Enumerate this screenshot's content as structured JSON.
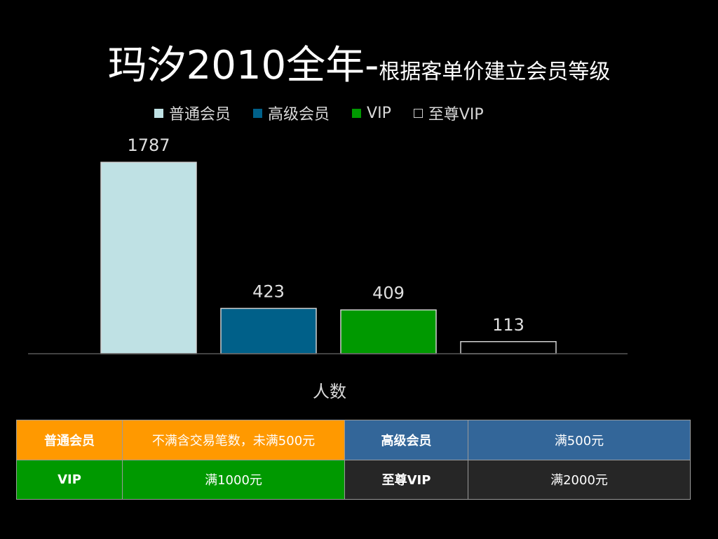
{
  "title": {
    "main": "玛汐2010全年-",
    "sub": "根据客单价建立会员等级"
  },
  "chart_data": {
    "type": "bar",
    "categories": [
      "人数"
    ],
    "series": [
      {
        "name": "普通会员",
        "values": [
          1787
        ],
        "color": "#bfe1e4"
      },
      {
        "name": "高级会员",
        "values": [
          423
        ],
        "color": "#006089"
      },
      {
        "name": "VIP",
        "values": [
          409
        ],
        "color": "#009900"
      },
      {
        "name": "至尊VIP",
        "values": [
          113
        ],
        "color": "#000000"
      }
    ],
    "ylim": [
      0,
      1900
    ],
    "grid": false,
    "legend": "top"
  },
  "tiers": [
    {
      "name": "普通会员",
      "rule": "不满含交易笔数，未满500元",
      "color": "#ff9900"
    },
    {
      "name": "高级会员",
      "rule": "满500元",
      "color": "#336699"
    },
    {
      "name": "VIP",
      "rule": "满1000元",
      "color": "#009900"
    },
    {
      "name": "至尊VIP",
      "rule": "满2000元",
      "color": "#262626"
    }
  ]
}
